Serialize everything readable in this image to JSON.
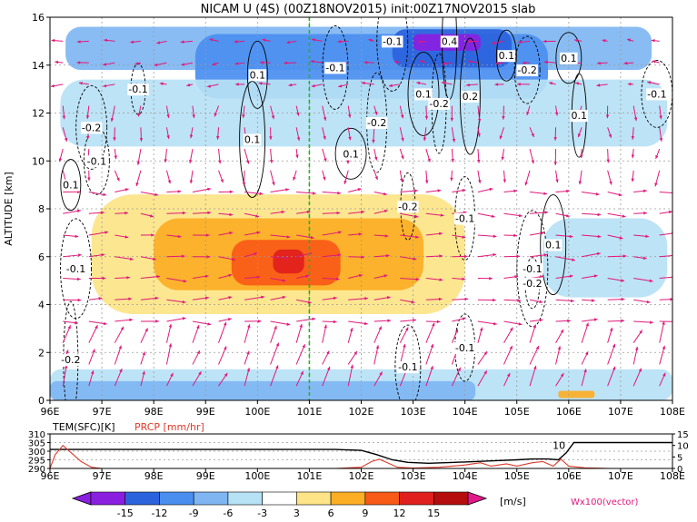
{
  "chart_data": [
    {
      "type": "heatmap",
      "title": "NICAM U (4S) (00Z18NOV2015) init:00Z17NOV2015 slab",
      "ylabel": "ALTITUDE [km]",
      "x_ticks": [
        "96E",
        "97E",
        "98E",
        "99E",
        "100E",
        "101E",
        "102E",
        "103E",
        "104E",
        "105E",
        "106E",
        "107E",
        "108E"
      ],
      "x_tick_values": [
        96,
        97,
        98,
        99,
        100,
        101,
        102,
        103,
        104,
        105,
        106,
        107,
        108
      ],
      "xlim": [
        96,
        108
      ],
      "y_ticks": [
        "0",
        "2",
        "4",
        "6",
        "8",
        "10",
        "12",
        "14",
        "16"
      ],
      "y_tick_values": [
        0,
        2,
        4,
        6,
        8,
        10,
        12,
        14,
        16
      ],
      "ylim": [
        0,
        16
      ],
      "grid": true,
      "reference_line_x": 101,
      "colors": {
        "neg15": "#8a1fe0",
        "neg12": "#2b63dd",
        "neg9": "#4a8ef0",
        "neg6": "#7fb6f2",
        "neg3": "#b7e1f5",
        "pos3": "#fde487",
        "pos6": "#fcae24",
        "pos9": "#f85a17",
        "pos12": "#e0201e",
        "pos15": "#b50d0d",
        "vector": "#e0187a",
        "refline": "#2bb02b"
      },
      "shaded_regions": [
        {
          "value": -6,
          "x": [
            96.3,
            107.6
          ],
          "y": [
            13.8,
            15.6
          ]
        },
        {
          "value": -9,
          "x": [
            98.8,
            105.6
          ],
          "y": [
            12.6,
            15.3
          ]
        },
        {
          "value": -12,
          "x": [
            102.6,
            104.9
          ],
          "y": [
            13.9,
            15.5
          ]
        },
        {
          "value": -15,
          "x": [
            103.0,
            104.3
          ],
          "y": [
            14.6,
            15.3
          ]
        },
        {
          "value": -3,
          "x": [
            96.2,
            107.9
          ],
          "y": [
            10.6,
            13.4
          ]
        },
        {
          "value": -3,
          "x": [
            105.5,
            107.9
          ],
          "y": [
            4.3,
            7.6
          ]
        },
        {
          "value": -3,
          "x": [
            96.0,
            108.0
          ],
          "y": [
            0.0,
            1.3
          ]
        },
        {
          "value": -6,
          "x": [
            96.0,
            104.2
          ],
          "y": [
            0.0,
            0.8
          ]
        },
        {
          "value": 3,
          "x": [
            96.8,
            104.0
          ],
          "y": [
            3.6,
            8.6
          ]
        },
        {
          "value": 6,
          "x": [
            98.0,
            103.2
          ],
          "y": [
            4.6,
            7.6
          ]
        },
        {
          "value": 9,
          "x": [
            99.5,
            101.6
          ],
          "y": [
            4.8,
            6.7
          ]
        },
        {
          "value": 12,
          "x": [
            100.3,
            100.9
          ],
          "y": [
            5.3,
            6.3
          ]
        },
        {
          "value": 6,
          "x": [
            105.8,
            106.5
          ],
          "y": [
            0.1,
            0.4
          ]
        }
      ],
      "contour_labels": [
        {
          "text": "-0.1",
          "x": 97.7,
          "y": 13.0
        },
        {
          "text": "0.1",
          "x": 100.0,
          "y": 13.6
        },
        {
          "text": "-0.1",
          "x": 101.5,
          "y": 13.9
        },
        {
          "text": "-0.1",
          "x": 102.6,
          "y": 15.0
        },
        {
          "text": "0.4",
          "x": 103.7,
          "y": 15.0
        },
        {
          "text": "0.1",
          "x": 104.8,
          "y": 14.4
        },
        {
          "text": "-0.2",
          "x": 105.2,
          "y": 13.8
        },
        {
          "text": "0.1",
          "x": 103.2,
          "y": 12.8
        },
        {
          "text": "-0.2",
          "x": 103.5,
          "y": 12.4
        },
        {
          "text": "0.2",
          "x": 104.1,
          "y": 12.7
        },
        {
          "text": "0.1",
          "x": 106.0,
          "y": 14.3
        },
        {
          "text": "-0.1",
          "x": 107.7,
          "y": 12.8
        },
        {
          "text": "0.1",
          "x": 106.2,
          "y": 11.9
        },
        {
          "text": "-0.2",
          "x": 102.3,
          "y": 11.6
        },
        {
          "text": "0.1",
          "x": 99.9,
          "y": 10.9
        },
        {
          "text": "0.1",
          "x": 101.8,
          "y": 10.3
        },
        {
          "text": "-0.2",
          "x": 102.9,
          "y": 8.1
        },
        {
          "text": "-0.1",
          "x": 104.0,
          "y": 7.6
        },
        {
          "text": "0.1",
          "x": 105.7,
          "y": 6.5
        },
        {
          "text": "-0.1",
          "x": 105.3,
          "y": 5.5
        },
        {
          "text": "-0.2",
          "x": 105.3,
          "y": 4.9
        },
        {
          "text": "-0.1",
          "x": 104.0,
          "y": 2.2
        },
        {
          "text": "-0.1",
          "x": 102.9,
          "y": 1.4
        },
        {
          "text": "-0.1",
          "x": 96.5,
          "y": 5.5
        },
        {
          "text": "-0.2",
          "x": 96.4,
          "y": 1.7
        },
        {
          "text": "0.1",
          "x": 96.4,
          "y": 9.0
        },
        {
          "text": "-0.1",
          "x": 96.9,
          "y": 10.0
        },
        {
          "text": "-0.2",
          "x": 96.8,
          "y": 11.4
        }
      ],
      "colorbar": {
        "ticks": [
          "-15",
          "-12",
          "-9",
          "-6",
          "-3",
          "3",
          "6",
          "9",
          "12",
          "15"
        ],
        "unit": "[m/s]",
        "vector_label": "Wx100(vector)"
      }
    },
    {
      "type": "line",
      "labels": {
        "temp": "TEM(SFC)[K]",
        "prcp": "PRCP [mm/hr]"
      },
      "x_ticks": [
        "96E",
        "97E",
        "98E",
        "99E",
        "100E",
        "101E",
        "102E",
        "103E",
        "104E",
        "105E",
        "106E",
        "107E",
        "108E"
      ],
      "xlim": [
        96,
        108
      ],
      "left_axis_ticks": [
        "310",
        "305",
        "300",
        "295",
        "290"
      ],
      "left_axis_values": [
        310,
        305,
        300,
        295,
        290
      ],
      "right_axis_ticks": [
        "15",
        "10",
        "5",
        "0"
      ],
      "right_axis_values": [
        15,
        10,
        5,
        0
      ],
      "annotation": {
        "text": "10",
        "x": 105.9,
        "y": 10
      },
      "series": [
        {
          "axis": "left",
          "color": "#000000",
          "x": [
            96,
            97,
            98,
            99,
            100,
            101,
            101.5,
            102,
            102.3,
            102.6,
            102.9,
            103.3,
            103.8,
            104.2,
            104.6,
            105.0,
            105.3,
            105.6,
            105.8,
            105.95,
            106.1,
            106.5,
            107,
            108
          ],
          "values": [
            301,
            301,
            301,
            301,
            301,
            301,
            301,
            300.5,
            298,
            295,
            293.5,
            293,
            293.5,
            294,
            294.5,
            295,
            295.5,
            295.5,
            295,
            299,
            305,
            305,
            305,
            305
          ]
        },
        {
          "axis": "right",
          "color": "#e03a2a",
          "x": [
            96,
            96.1,
            96.25,
            96.45,
            96.6,
            96.8,
            97,
            98,
            100,
            101.5,
            102,
            102.2,
            102.35,
            102.5,
            102.7,
            103,
            103.5,
            104,
            104.3,
            104.5,
            104.8,
            105,
            105.3,
            105.5,
            105.7,
            105.85,
            106,
            106.3,
            106.8,
            108
          ],
          "values": [
            0,
            6,
            10,
            6,
            3,
            0.5,
            0,
            0,
            0,
            0,
            0.5,
            3,
            4,
            2.5,
            0.5,
            0.2,
            0.5,
            1.5,
            2.5,
            1,
            2,
            1,
            2.5,
            3,
            1,
            4,
            1,
            0.3,
            0,
            0
          ]
        }
      ]
    }
  ]
}
